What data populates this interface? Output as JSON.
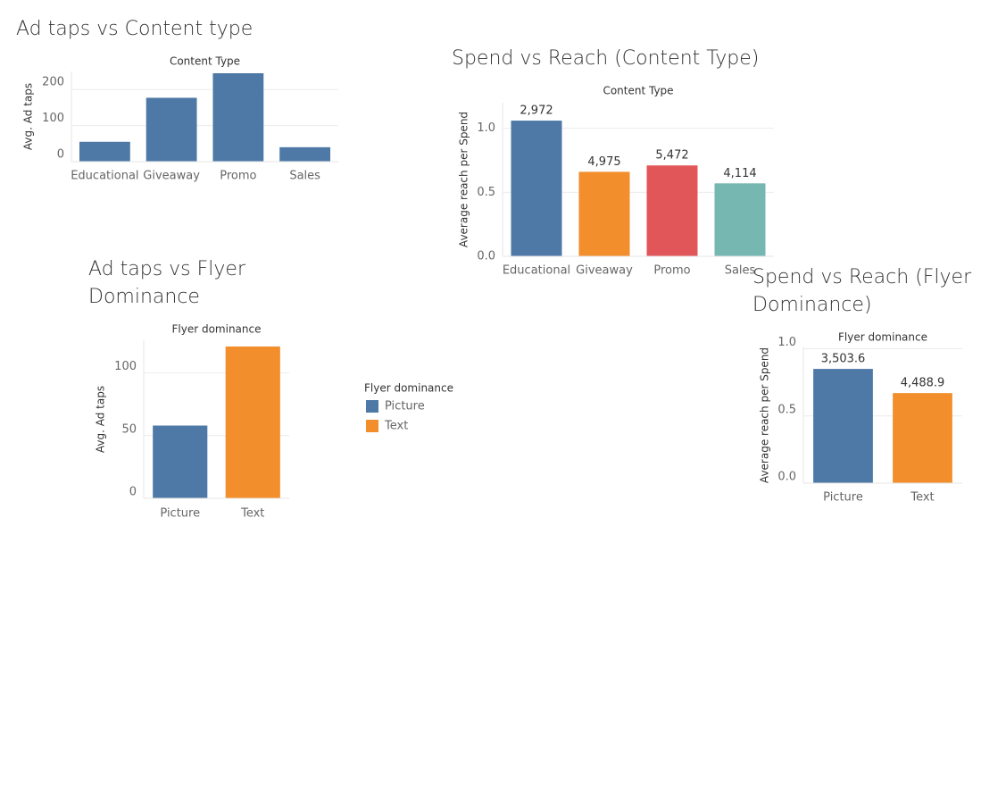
{
  "chart_data": [
    {
      "type": "bar",
      "title": "Ad taps vs Content type",
      "header": "Content Type",
      "ylabel": "Avg. Ad taps",
      "categories": [
        "Educational",
        "Giveaway",
        "Promo",
        "Sales"
      ],
      "values": [
        55,
        177,
        245,
        40
      ],
      "colors": [
        "#4e79a7",
        "#4e79a7",
        "#4e79a7",
        "#4e79a7"
      ],
      "ylim": [
        0,
        250
      ],
      "yticks": [
        0,
        100,
        200
      ],
      "grid": true
    },
    {
      "type": "bar",
      "title": "Spend vs Reach (Content Type)",
      "header": "Content Type",
      "ylabel": "Average reach per Spend",
      "categories": [
        "Educational",
        "Giveaway",
        "Promo",
        "Sales"
      ],
      "values": [
        1.06,
        0.66,
        0.71,
        0.57
      ],
      "bar_labels": [
        "2,972",
        "4,975",
        "5,472",
        "4,114"
      ],
      "colors": [
        "#4e79a7",
        "#f28e2b",
        "#e15759",
        "#76b7b2"
      ],
      "ylim": [
        0,
        1.2
      ],
      "yticks": [
        {
          "value": 0,
          "label": "0.0"
        },
        {
          "value": 0.5,
          "label": "0.5"
        },
        {
          "value": 1,
          "label": "1.0"
        }
      ],
      "grid": true
    },
    {
      "type": "bar",
      "title": "Ad taps vs Flyer Dominance",
      "header": "Flyer dominance",
      "ylabel": "Avg. Ad taps",
      "categories": [
        "Picture",
        "Text"
      ],
      "values": [
        58,
        121
      ],
      "colors": [
        "#4e79a7",
        "#f28e2b"
      ],
      "ylim": [
        0,
        126
      ],
      "yticks": [
        0,
        50,
        100
      ],
      "grid": true,
      "legend": {
        "title": "Flyer dominance",
        "items": [
          {
            "name": "Picture",
            "color": "#4e79a7"
          },
          {
            "name": "Text",
            "color": "#f28e2b"
          }
        ]
      }
    },
    {
      "type": "bar",
      "title": "Spend vs Reach (Flyer Dominance)",
      "header": "Flyer dominance",
      "ylabel": "Average reach per Spend",
      "categories": [
        "Picture",
        "Text"
      ],
      "values": [
        0.85,
        0.67
      ],
      "bar_labels": [
        "3,503.6",
        "4,488.9"
      ],
      "colors": [
        "#4e79a7",
        "#f28e2b"
      ],
      "ylim": [
        0,
        1.01
      ],
      "yticks": [
        {
          "value": 0,
          "label": "0.0"
        },
        {
          "value": 0.5,
          "label": "0.5"
        },
        {
          "value": 1,
          "label": "1.0"
        }
      ],
      "grid": true
    }
  ]
}
